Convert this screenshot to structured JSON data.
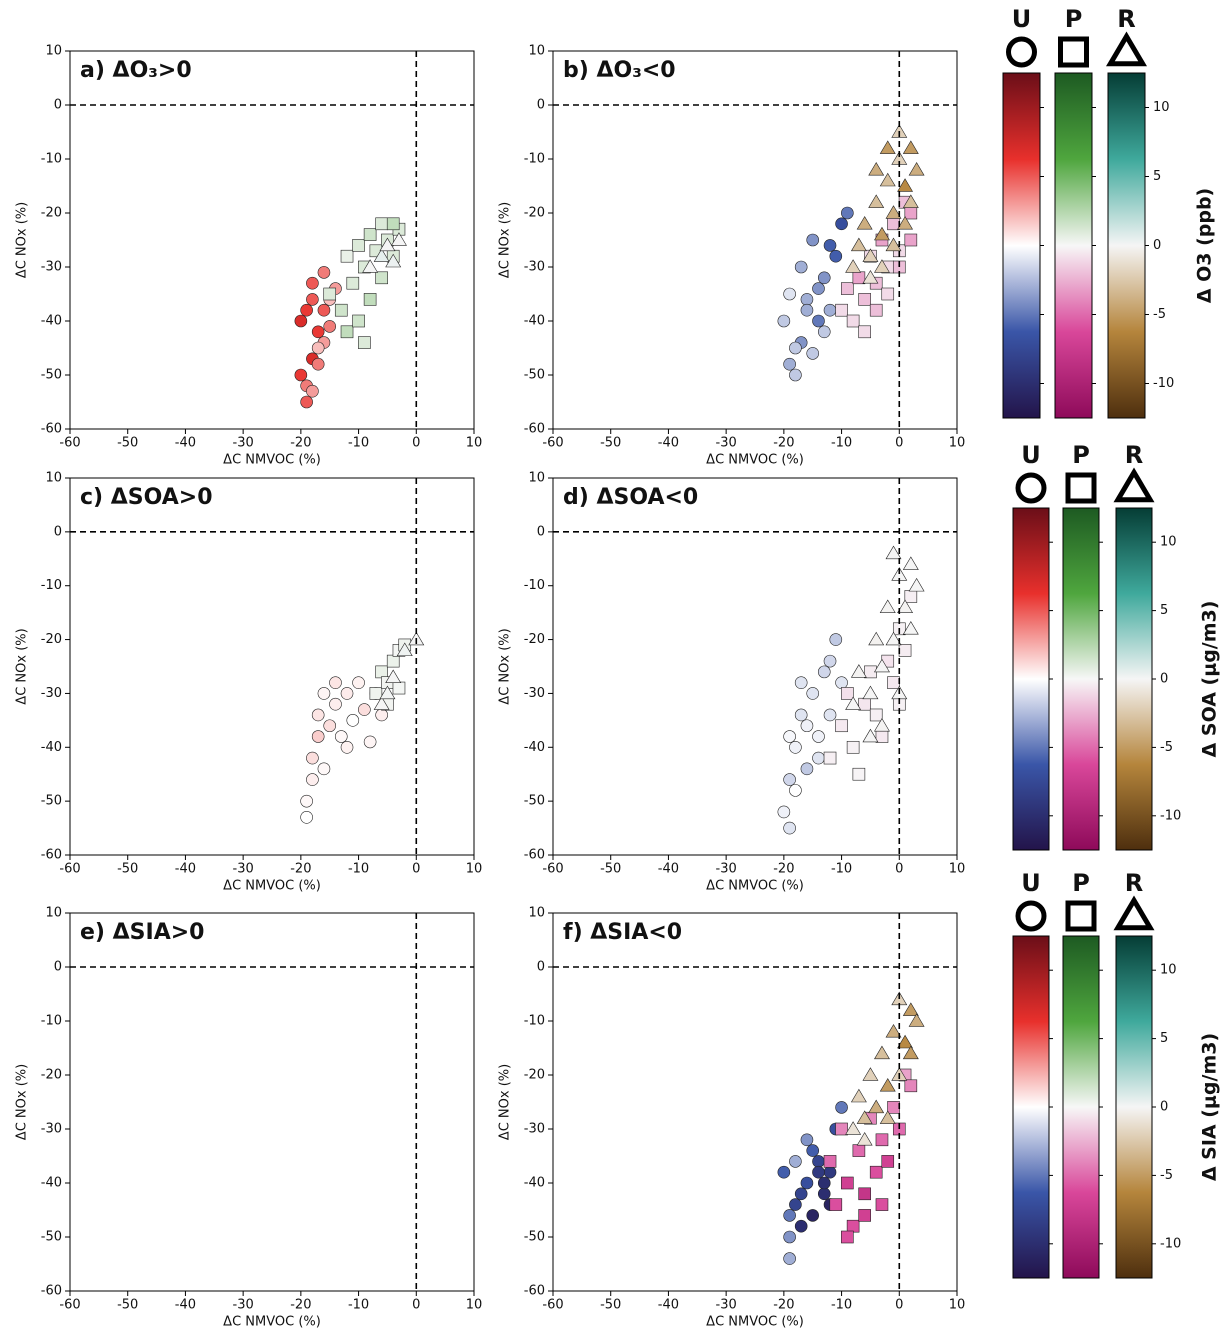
{
  "chart_data": [
    {
      "type": "scatter",
      "title": "a) ΔO₃>0",
      "xlabel": "ΔC NMVOC (%)",
      "ylabel": "ΔC NOx (%)",
      "xlim": [
        -60,
        10
      ],
      "ylim": [
        -60,
        10
      ],
      "xticks": [
        -60,
        -50,
        -40,
        -30,
        -20,
        -10,
        0,
        10
      ],
      "yticks": [
        -60,
        -50,
        -40,
        -30,
        -20,
        -10,
        0,
        10
      ],
      "zero_lines": true,
      "series": [
        {
          "marker": "circle",
          "x": [
            -20,
            -19,
            -19,
            -18,
            -18,
            -17,
            -17,
            -16,
            -16,
            -15,
            -15,
            -14,
            -19,
            -18,
            -17,
            -16,
            -20,
            -18
          ],
          "y": [
            -50,
            -52,
            -55,
            -47,
            -53,
            -42,
            -48,
            -38,
            -44,
            -36,
            -41,
            -34,
            -38,
            -33,
            -45,
            -31,
            -40,
            -36
          ],
          "c": [
            6,
            4,
            5,
            7,
            3,
            6,
            4,
            5,
            3,
            2,
            4,
            3,
            6,
            5,
            2,
            4,
            7,
            5
          ]
        },
        {
          "marker": "square",
          "x": [
            -15,
            -13,
            -12,
            -11,
            -10,
            -9,
            -8,
            -7,
            -6,
            -5,
            -4,
            -3,
            -12,
            -10,
            -8,
            -6,
            -4,
            -9
          ],
          "y": [
            -35,
            -38,
            -42,
            -33,
            -40,
            -30,
            -36,
            -27,
            -32,
            -25,
            -28,
            -23,
            -28,
            -26,
            -24,
            -22,
            -22,
            -44
          ],
          "c": [
            1,
            1.5,
            2,
            1,
            1.5,
            1,
            2,
            1,
            1.5,
            1,
            1,
            1,
            0.5,
            1,
            1.5,
            1,
            2,
            1
          ]
        },
        {
          "marker": "triangle",
          "x": [
            -8,
            -6,
            -5,
            -4,
            -3
          ],
          "y": [
            -30,
            -28,
            -26,
            -29,
            -25
          ],
          "c": [
            0,
            0.5,
            0,
            0.3,
            0
          ]
        }
      ]
    },
    {
      "type": "scatter",
      "title": "b) ΔO₃<0",
      "xlabel": "ΔC NMVOC (%)",
      "ylabel": "ΔC NOx (%)",
      "xlim": [
        -60,
        10
      ],
      "ylim": [
        -60,
        10
      ],
      "xticks": [
        -60,
        -50,
        -40,
        -30,
        -20,
        -10,
        0,
        10
      ],
      "yticks": [
        -60,
        -50,
        -40,
        -30,
        -20,
        -10,
        0,
        10
      ],
      "zero_lines": true,
      "series": [
        {
          "marker": "circle",
          "x": [
            -20,
            -19,
            -18,
            -17,
            -16,
            -15,
            -14,
            -13,
            -12,
            -11,
            -10,
            -9,
            -19,
            -17,
            -15,
            -13,
            -18,
            -16,
            -14,
            -12
          ],
          "y": [
            -40,
            -48,
            -50,
            -44,
            -36,
            -46,
            -40,
            -32,
            -38,
            -28,
            -22,
            -20,
            -35,
            -30,
            -25,
            -42,
            -45,
            -38,
            -34,
            -26
          ],
          "c": [
            -2,
            -3,
            -2,
            -4,
            -3,
            -2,
            -5,
            -4,
            -3,
            -6,
            -7,
            -5,
            -1,
            -3,
            -4,
            -2,
            -2,
            -3,
            -4,
            -6
          ]
        },
        {
          "marker": "square",
          "x": [
            -10,
            -9,
            -8,
            -7,
            -6,
            -5,
            -4,
            -3,
            -2,
            -1,
            0,
            1,
            2,
            -6,
            -4,
            -2,
            0,
            2
          ],
          "y": [
            -38,
            -34,
            -40,
            -32,
            -36,
            -28,
            -33,
            -25,
            -30,
            -22,
            -27,
            -18,
            -20,
            -42,
            -38,
            -35,
            -30,
            -25
          ],
          "c": [
            -1,
            -2,
            -1,
            -3,
            -2,
            -1,
            -2,
            -3,
            -1,
            -2,
            -1,
            -2,
            -3,
            -1,
            -2,
            -1,
            -2,
            -3
          ]
        },
        {
          "marker": "triangle",
          "x": [
            -8,
            -7,
            -6,
            -5,
            -4,
            -3,
            -2,
            -1,
            0,
            1,
            2,
            3,
            -5,
            -3,
            -1,
            1,
            0,
            2,
            -2,
            -4
          ],
          "y": [
            -30,
            -26,
            -22,
            -28,
            -18,
            -24,
            -14,
            -20,
            -10,
            -15,
            -8,
            -12,
            -32,
            -30,
            -26,
            -22,
            -5,
            -18,
            -8,
            -12
          ],
          "c": [
            -2,
            -3,
            -4,
            -2,
            -3,
            -5,
            -3,
            -4,
            -2,
            -6,
            -5,
            -4,
            -1,
            -2,
            -3,
            -4,
            -2,
            -3,
            -5,
            -4
          ]
        }
      ]
    },
    {
      "type": "scatter",
      "title": "c) ΔSOA>0",
      "xlabel": "ΔC NMVOC (%)",
      "ylabel": "ΔC NOx (%)",
      "xlim": [
        -60,
        10
      ],
      "ylim": [
        -60,
        10
      ],
      "xticks": [
        -60,
        -50,
        -40,
        -30,
        -20,
        -10,
        0,
        10
      ],
      "yticks": [
        -60,
        -50,
        -40,
        -30,
        -20,
        -10,
        0,
        10
      ],
      "zero_lines": true,
      "series": [
        {
          "marker": "circle",
          "x": [
            -19,
            -19,
            -18,
            -18,
            -17,
            -17,
            -16,
            -15,
            -14,
            -13,
            -12,
            -11,
            -10,
            -9,
            -8,
            -7,
            -6,
            -16,
            -14,
            -12
          ],
          "y": [
            -50,
            -53,
            -46,
            -42,
            -38,
            -34,
            -30,
            -36,
            -32,
            -38,
            -30,
            -35,
            -28,
            -33,
            -39,
            -30,
            -34,
            -44,
            -28,
            -40
          ],
          "c": [
            0.2,
            0,
            0.5,
            1,
            1.5,
            0.8,
            0.3,
            1,
            0.5,
            0.2,
            0.6,
            0,
            0.4,
            1,
            0.3,
            0,
            0.5,
            0.2,
            0.8,
            0.4
          ]
        },
        {
          "marker": "square",
          "x": [
            -7,
            -6,
            -5,
            -4,
            -3,
            -2,
            -5,
            -3
          ],
          "y": [
            -30,
            -26,
            -28,
            -24,
            -22,
            -21,
            -32,
            -29
          ],
          "c": [
            0.3,
            0.5,
            0.2,
            0.4,
            0.1,
            0.3,
            0.2,
            0.1
          ]
        },
        {
          "marker": "triangle",
          "x": [
            -6,
            -5,
            -4,
            -2,
            0
          ],
          "y": [
            -32,
            -30,
            -27,
            -22,
            -20
          ],
          "c": [
            0,
            0.1,
            0,
            0.2,
            0
          ]
        }
      ]
    },
    {
      "type": "scatter",
      "title": "d) ΔSOA<0",
      "xlabel": "ΔC NMVOC (%)",
      "ylabel": "ΔC NOx (%)",
      "xlim": [
        -60,
        10
      ],
      "ylim": [
        -60,
        10
      ],
      "xticks": [
        -60,
        -50,
        -40,
        -30,
        -20,
        -10,
        0,
        10
      ],
      "yticks": [
        -60,
        -50,
        -40,
        -30,
        -20,
        -10,
        0,
        10
      ],
      "zero_lines": true,
      "series": [
        {
          "marker": "circle",
          "x": [
            -20,
            -19,
            -19,
            -18,
            -17,
            -16,
            -15,
            -14,
            -13,
            -12,
            -11,
            -10,
            -18,
            -16,
            -14,
            -12,
            -19,
            -17
          ],
          "y": [
            -52,
            -55,
            -46,
            -40,
            -34,
            -44,
            -30,
            -38,
            -26,
            -34,
            -20,
            -28,
            -48,
            -36,
            -42,
            -24,
            -38,
            -28
          ],
          "c": [
            -0.5,
            -1,
            -1.5,
            -0.5,
            -1,
            -2,
            -1,
            -0.5,
            -1.5,
            -1,
            -2,
            -1,
            0,
            -0.5,
            -1,
            -1.5,
            -0.3,
            -1
          ]
        },
        {
          "marker": "square",
          "x": [
            -12,
            -10,
            -9,
            -8,
            -6,
            -5,
            -4,
            -2,
            -1,
            0,
            1,
            2,
            -7,
            -3,
            0
          ],
          "y": [
            -42,
            -36,
            -30,
            -40,
            -32,
            -26,
            -34,
            -24,
            -28,
            -18,
            -22,
            -12,
            -45,
            -38,
            -32
          ],
          "c": [
            -0.3,
            -0.5,
            -0.8,
            -0.2,
            -0.6,
            -0.4,
            -0.3,
            -0.7,
            -0.5,
            -0.2,
            -0.4,
            -0.3,
            -0.1,
            -0.5,
            -0.2
          ]
        },
        {
          "marker": "triangle",
          "x": [
            -8,
            -7,
            -5,
            -4,
            -3,
            -2,
            -1,
            0,
            1,
            2,
            3,
            -3,
            0,
            2,
            -5,
            -1
          ],
          "y": [
            -32,
            -26,
            -30,
            -20,
            -25,
            -14,
            -20,
            -8,
            -14,
            -6,
            -10,
            -36,
            -30,
            -18,
            -38,
            -4
          ],
          "c": [
            0,
            -0.1,
            0,
            -0.2,
            0,
            -0.1,
            0,
            0,
            -0.1,
            0,
            0,
            -0.1,
            0,
            0,
            0,
            0
          ]
        }
      ]
    },
    {
      "type": "scatter",
      "title": "e) ΔSIA>0",
      "xlabel": "ΔC NMVOC (%)",
      "ylabel": "ΔC NOx (%)",
      "xlim": [
        -60,
        10
      ],
      "ylim": [
        -60,
        10
      ],
      "xticks": [
        -60,
        -50,
        -40,
        -30,
        -20,
        -10,
        0,
        10
      ],
      "yticks": [
        -60,
        -50,
        -40,
        -30,
        -20,
        -10,
        0,
        10
      ],
      "zero_lines": true,
      "series": []
    },
    {
      "type": "scatter",
      "title": "f) ΔSIA<0",
      "xlabel": "ΔC NMVOC (%)",
      "ylabel": "ΔC NOx (%)",
      "xlim": [
        -60,
        10
      ],
      "ylim": [
        -60,
        10
      ],
      "xticks": [
        -60,
        -50,
        -40,
        -30,
        -20,
        -10,
        0,
        10
      ],
      "yticks": [
        -60,
        -50,
        -40,
        -30,
        -20,
        -10,
        0,
        10
      ],
      "zero_lines": true,
      "series": [
        {
          "marker": "circle",
          "x": [
            -20,
            -19,
            -19,
            -18,
            -17,
            -16,
            -15,
            -14,
            -13,
            -12,
            -11,
            -10,
            -18,
            -16,
            -14,
            -12,
            -19,
            -17,
            -15,
            -13
          ],
          "y": [
            -38,
            -50,
            -54,
            -44,
            -48,
            -40,
            -46,
            -36,
            -42,
            -38,
            -30,
            -26,
            -36,
            -32,
            -38,
            -44,
            -46,
            -42,
            -34,
            -40
          ],
          "c": [
            -6,
            -4,
            -3,
            -8,
            -10,
            -7,
            -11,
            -8,
            -10,
            -9,
            -7,
            -5,
            -3,
            -4,
            -9,
            -11,
            -5,
            -8,
            -6,
            -10
          ]
        },
        {
          "marker": "square",
          "x": [
            -12,
            -11,
            -10,
            -9,
            -8,
            -7,
            -6,
            -5,
            -4,
            -3,
            -2,
            -1,
            0,
            1,
            2,
            -9,
            -6,
            -3
          ],
          "y": [
            -36,
            -44,
            -30,
            -40,
            -48,
            -34,
            -42,
            -28,
            -38,
            -32,
            -36,
            -26,
            -30,
            -20,
            -22,
            -50,
            -46,
            -44
          ],
          "c": [
            -5,
            -6,
            -4,
            -7,
            -6,
            -5,
            -8,
            -4,
            -6,
            -5,
            -7,
            -4,
            -5,
            -3,
            -4,
            -6,
            -7,
            -6
          ]
        },
        {
          "marker": "triangle",
          "x": [
            -8,
            -7,
            -6,
            -5,
            -4,
            -3,
            -2,
            -1,
            0,
            1,
            2,
            3,
            -6,
            -2,
            0,
            2
          ],
          "y": [
            -30,
            -24,
            -28,
            -20,
            -26,
            -16,
            -22,
            -12,
            -6,
            -14,
            -8,
            -10,
            -32,
            -28,
            -20,
            -16
          ],
          "c": [
            -1,
            -2,
            -3,
            -2,
            -4,
            -3,
            -5,
            -4,
            -2,
            -6,
            -5,
            -4,
            -1,
            -3,
            -2,
            -5
          ]
        }
      ]
    },
    {
      "type": "colorbar",
      "label": "Δ O3 (ppb)",
      "clim": [
        -12.5,
        12.5
      ],
      "ticks": [
        10,
        5,
        0,
        -5,
        -10
      ],
      "series": [
        {
          "name": "U",
          "marker": "circle",
          "colors": [
            "#23144a",
            "#3a56a8",
            "#ffffff",
            "#e8302c",
            "#6b0e18"
          ]
        },
        {
          "name": "P",
          "marker": "square",
          "colors": [
            "#8e0a5a",
            "#d9479a",
            "#f7f7f7",
            "#4fa63e",
            "#1d5a22"
          ]
        },
        {
          "name": "R",
          "marker": "triangle",
          "colors": [
            "#4e2f0e",
            "#b5853c",
            "#f5f5f5",
            "#3fa99c",
            "#053d35"
          ]
        }
      ]
    },
    {
      "type": "colorbar",
      "label": "Δ SOA (μg/m3)",
      "clim": [
        -12.5,
        12.5
      ],
      "ticks": [
        10,
        5,
        0,
        -5,
        -10
      ],
      "series": [
        {
          "name": "U",
          "marker": "circle",
          "colors": [
            "#23144a",
            "#3a56a8",
            "#ffffff",
            "#e8302c",
            "#6b0e18"
          ]
        },
        {
          "name": "P",
          "marker": "square",
          "colors": [
            "#8e0a5a",
            "#d9479a",
            "#f7f7f7",
            "#4fa63e",
            "#1d5a22"
          ]
        },
        {
          "name": "R",
          "marker": "triangle",
          "colors": [
            "#4e2f0e",
            "#b5853c",
            "#f5f5f5",
            "#3fa99c",
            "#053d35"
          ]
        }
      ]
    },
    {
      "type": "colorbar",
      "label": "Δ SIA (μg/m3)",
      "clim": [
        -12.5,
        12.5
      ],
      "ticks": [
        10,
        5,
        0,
        -5,
        -10
      ],
      "series": [
        {
          "name": "U",
          "marker": "circle",
          "colors": [
            "#23144a",
            "#3a56a8",
            "#ffffff",
            "#e8302c",
            "#6b0e18"
          ]
        },
        {
          "name": "P",
          "marker": "square",
          "colors": [
            "#8e0a5a",
            "#d9479a",
            "#f7f7f7",
            "#4fa63e",
            "#1d5a22"
          ]
        },
        {
          "name": "R",
          "marker": "triangle",
          "colors": [
            "#4e2f0e",
            "#b5853c",
            "#f5f5f5",
            "#3fa99c",
            "#053d35"
          ]
        }
      ]
    }
  ]
}
